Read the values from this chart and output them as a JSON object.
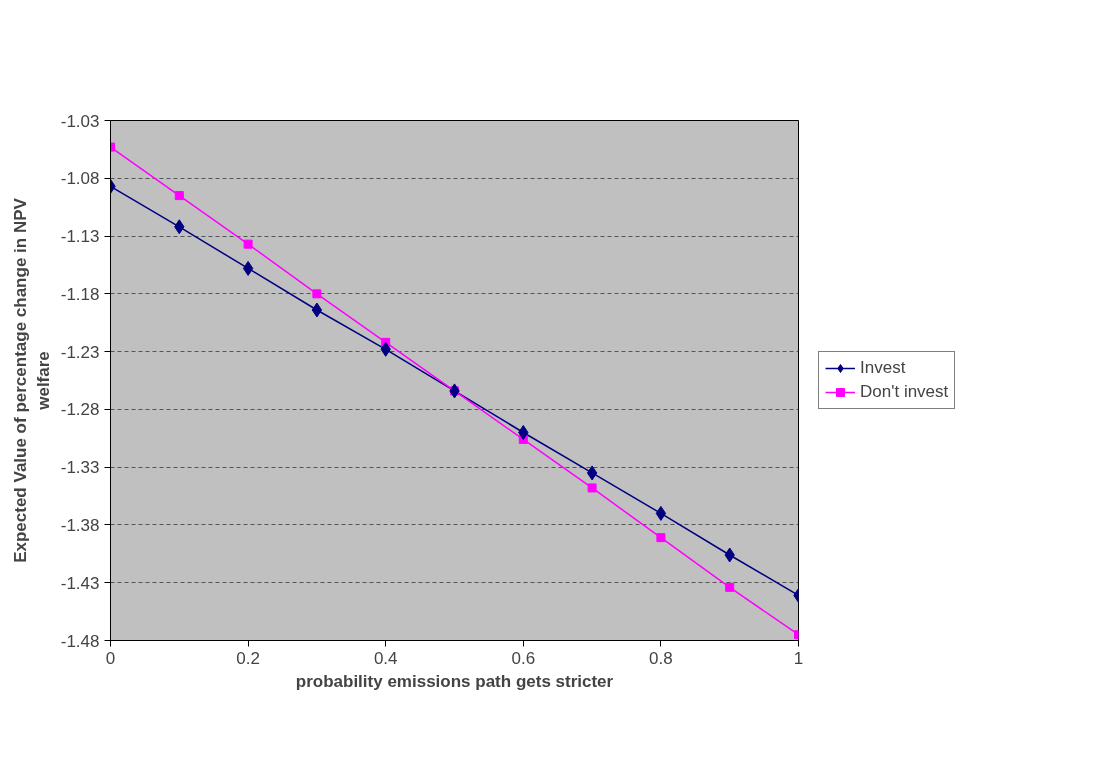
{
  "chart_data": {
    "type": "line",
    "xlabel": "probability emissions path gets stricter",
    "ylabel": "Expected Value of percentage change in NPV welfare",
    "x": [
      0,
      0.1,
      0.2,
      0.3,
      0.4,
      0.5,
      0.6,
      0.7,
      0.8,
      0.9,
      1
    ],
    "series": [
      {
        "name": "Invest",
        "color": "#000080",
        "marker": "diamond",
        "values": [
          -1.087,
          -1.122,
          -1.158,
          -1.194,
          -1.228,
          -1.264,
          -1.3,
          -1.335,
          -1.37,
          -1.406,
          -1.441
        ]
      },
      {
        "name": "Don't invest",
        "color": "#ff00ff",
        "marker": "square",
        "values": [
          -1.053,
          -1.095,
          -1.137,
          -1.18,
          -1.222,
          -1.264,
          -1.306,
          -1.348,
          -1.391,
          -1.434,
          -1.475
        ]
      }
    ],
    "xlim": [
      0,
      1
    ],
    "xticks": [
      0,
      0.2,
      0.4,
      0.6,
      0.8,
      1
    ],
    "ylim": [
      -1.48,
      -1.03
    ],
    "yticks": [
      -1.48,
      -1.43,
      -1.38,
      -1.33,
      -1.28,
      -1.23,
      -1.18,
      -1.13,
      -1.08,
      -1.03
    ],
    "grid": "y",
    "legend": "right",
    "line_style": "solid"
  }
}
